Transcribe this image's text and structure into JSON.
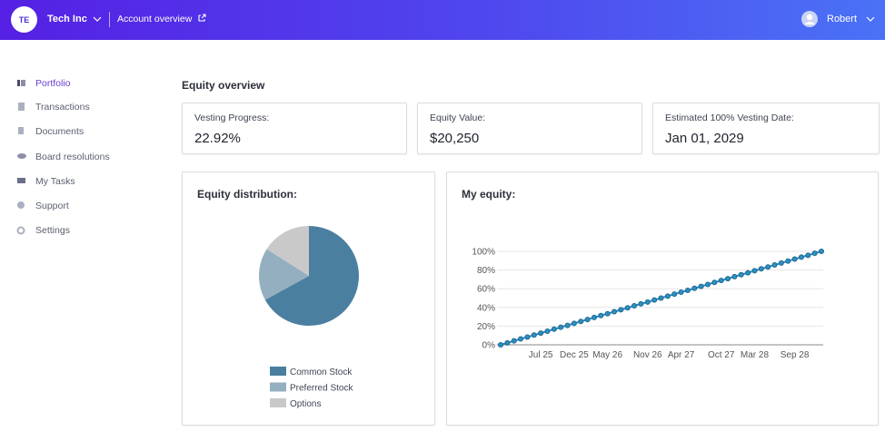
{
  "header": {
    "avatar": "TE",
    "company": "Tech Inc",
    "link": "Account overview",
    "user": "Robert"
  },
  "sidebar": [
    "Portfolio",
    "Transactions",
    "Documents",
    "Board resolutions",
    "My Tasks",
    "Support",
    "Settings"
  ],
  "page_title": "Equity overview",
  "cards": [
    {
      "label": "Vesting Progress:",
      "value": "22.92%"
    },
    {
      "label": "Equity Value:",
      "value": "$20,250"
    },
    {
      "label": "Estimated 100% Vesting Date:",
      "value": "Jan 01, 2029"
    }
  ],
  "chart_data": [
    {
      "type": "pie",
      "title": "Equity distribution:",
      "categories": [
        "Common Stock",
        "Preferred Stock",
        "Options"
      ],
      "values": [
        67,
        17,
        16
      ],
      "colors": [
        "#4a7fa0",
        "#93afc0",
        "#c9c9c9"
      ]
    },
    {
      "type": "line",
      "title": "My equity:",
      "categories": [
        null,
        null,
        null,
        null,
        null,
        null,
        "Jul 25",
        null,
        null,
        null,
        null,
        "Dec 25",
        null,
        null,
        null,
        null,
        "May 26",
        null,
        null,
        null,
        null,
        null,
        "Nov 26",
        null,
        null,
        null,
        null,
        "Apr 27",
        null,
        null,
        null,
        null,
        null,
        "Oct 27",
        null,
        null,
        null,
        null,
        "Mar 28",
        null,
        null,
        null,
        null,
        null,
        "Sep 28",
        null,
        null,
        null,
        null
      ],
      "series": [
        {
          "color": "#2b8fc2",
          "values": [
            0,
            2.1,
            4.2,
            6.3,
            8.3,
            10.4,
            12.5,
            14.6,
            16.7,
            18.8,
            20.8,
            22.9,
            25,
            27.1,
            29.2,
            31.3,
            33.3,
            35.4,
            37.5,
            39.6,
            41.7,
            43.8,
            45.8,
            47.9,
            50,
            52.1,
            54.2,
            56.3,
            58.3,
            60.4,
            62.5,
            64.6,
            66.7,
            68.8,
            70.8,
            72.9,
            75,
            77.1,
            79.2,
            81.3,
            83.3,
            85.4,
            87.5,
            89.6,
            91.7,
            93.8,
            95.8,
            97.9,
            100
          ]
        }
      ],
      "ylim": [
        0,
        100
      ],
      "yticks": [
        {
          "value": 0,
          "label": "0%"
        },
        {
          "value": 20,
          "label": "20%"
        },
        {
          "value": 40,
          "label": "40%"
        },
        {
          "value": 60,
          "label": "60%"
        },
        {
          "value": 80,
          "label": "80%"
        },
        {
          "value": 100,
          "label": "100%"
        }
      ],
      "grid": true
    }
  ]
}
